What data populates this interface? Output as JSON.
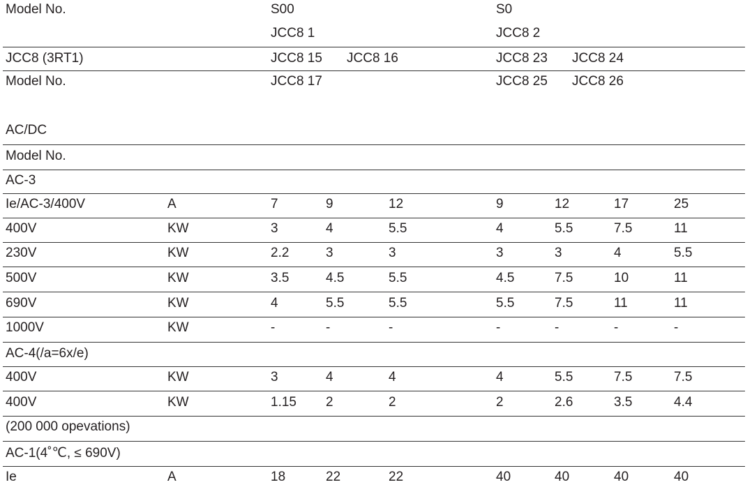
{
  "header": {
    "rows": [
      {
        "label": "Model No.",
        "s00": [
          "S00"
        ],
        "s0": [
          "S0"
        ]
      },
      {
        "s00": [
          "JCC8 1"
        ],
        "s0": [
          "JCC8 2"
        ]
      },
      {
        "label": "JCC8 (3RT1)",
        "s00": [
          "JCC8 15",
          "JCC8 16"
        ],
        "s0": [
          "JCC8 23",
          "JCC8 24"
        ]
      },
      {
        "label": "Model No.",
        "s00": [
          "JCC8 17"
        ],
        "s0": [
          "JCC8 25",
          "JCC8 26"
        ]
      }
    ]
  },
  "table": {
    "rows": [
      {
        "label": "AC/DC"
      },
      {
        "label": "Model No."
      },
      {
        "label": "AC-3"
      },
      {
        "label": "Ie/AC-3/400V",
        "unit": "A",
        "values": [
          7,
          9,
          12,
          9,
          12,
          17,
          25
        ]
      },
      {
        "label": "400V",
        "unit": "KW",
        "values": [
          3,
          4,
          5.5,
          4,
          5.5,
          7.5,
          11
        ]
      },
      {
        "label": "230V",
        "unit": "KW",
        "values": [
          2.2,
          3,
          3,
          3,
          3,
          4,
          5.5
        ]
      },
      {
        "label": "500V",
        "unit": "KW",
        "values": [
          3.5,
          4.5,
          5.5,
          4.5,
          7.5,
          10,
          11
        ]
      },
      {
        "label": "690V",
        "unit": "KW",
        "values": [
          4,
          5.5,
          5.5,
          5.5,
          7.5,
          11,
          11
        ]
      },
      {
        "label": "1000V",
        "unit": "KW",
        "values": [
          "-",
          "-",
          "-",
          "-",
          "-",
          "-",
          "-"
        ]
      },
      {
        "label": "AC-4(/a=6x/e)"
      },
      {
        "label": "400V",
        "unit": "KW",
        "values": [
          3,
          4,
          4,
          4,
          5.5,
          7.5,
          7.5
        ]
      },
      {
        "label": "400V",
        "unit": "KW",
        "values": [
          1.15,
          2,
          2,
          2,
          2.6,
          3.5,
          4.4
        ]
      },
      {
        "label": "(200 000 opevations)"
      },
      {
        "label": "AC-1(4˚℃, ≤ 690V)"
      },
      {
        "label": "Ie",
        "unit": "A",
        "values": [
          18,
          22,
          22,
          40,
          40,
          40,
          40
        ]
      }
    ]
  }
}
